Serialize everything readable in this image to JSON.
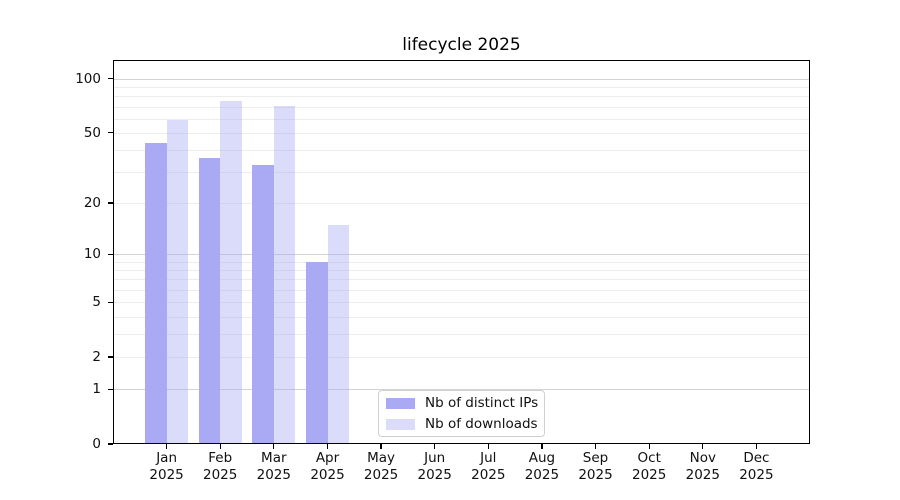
{
  "chart_data": {
    "type": "bar",
    "title": "lifecycle 2025",
    "xlabel": "",
    "ylabel": "",
    "y_scale": "log1p",
    "ylim": [
      0,
      127
    ],
    "grid": true,
    "legend_position": "lower center",
    "categories": [
      "Jan 2025",
      "Feb 2025",
      "Mar 2025",
      "Apr 2025",
      "May 2025",
      "Jun 2025",
      "Jul 2025",
      "Aug 2025",
      "Sep 2025",
      "Oct 2025",
      "Nov 2025",
      "Dec 2025"
    ],
    "series": [
      {
        "name": "Nb of distinct IPs",
        "color": "#a9a9f4",
        "opacity": 1,
        "values": [
          44,
          36,
          33,
          9,
          0,
          0,
          0,
          0,
          0,
          0,
          0,
          0
        ]
      },
      {
        "name": "Nb of downloads",
        "color": "#a9a9f4",
        "opacity": 0.42,
        "values": [
          59,
          75,
          71,
          15,
          0,
          0,
          0,
          0,
          0,
          0,
          0,
          0
        ]
      }
    ],
    "y_ticks": [
      100,
      50,
      20,
      10,
      5,
      2,
      1,
      0
    ],
    "gridlines": {
      "major": [
        1,
        10,
        100
      ],
      "minor": [
        2,
        3,
        4,
        5,
        6,
        7,
        8,
        9,
        20,
        30,
        40,
        50,
        60,
        70,
        80,
        90
      ]
    },
    "colors": {
      "major_grid": "#d3d3d3",
      "minor_grid": "#ececec",
      "axis": "#000000",
      "text": "#111111",
      "background": "#ffffff"
    }
  }
}
